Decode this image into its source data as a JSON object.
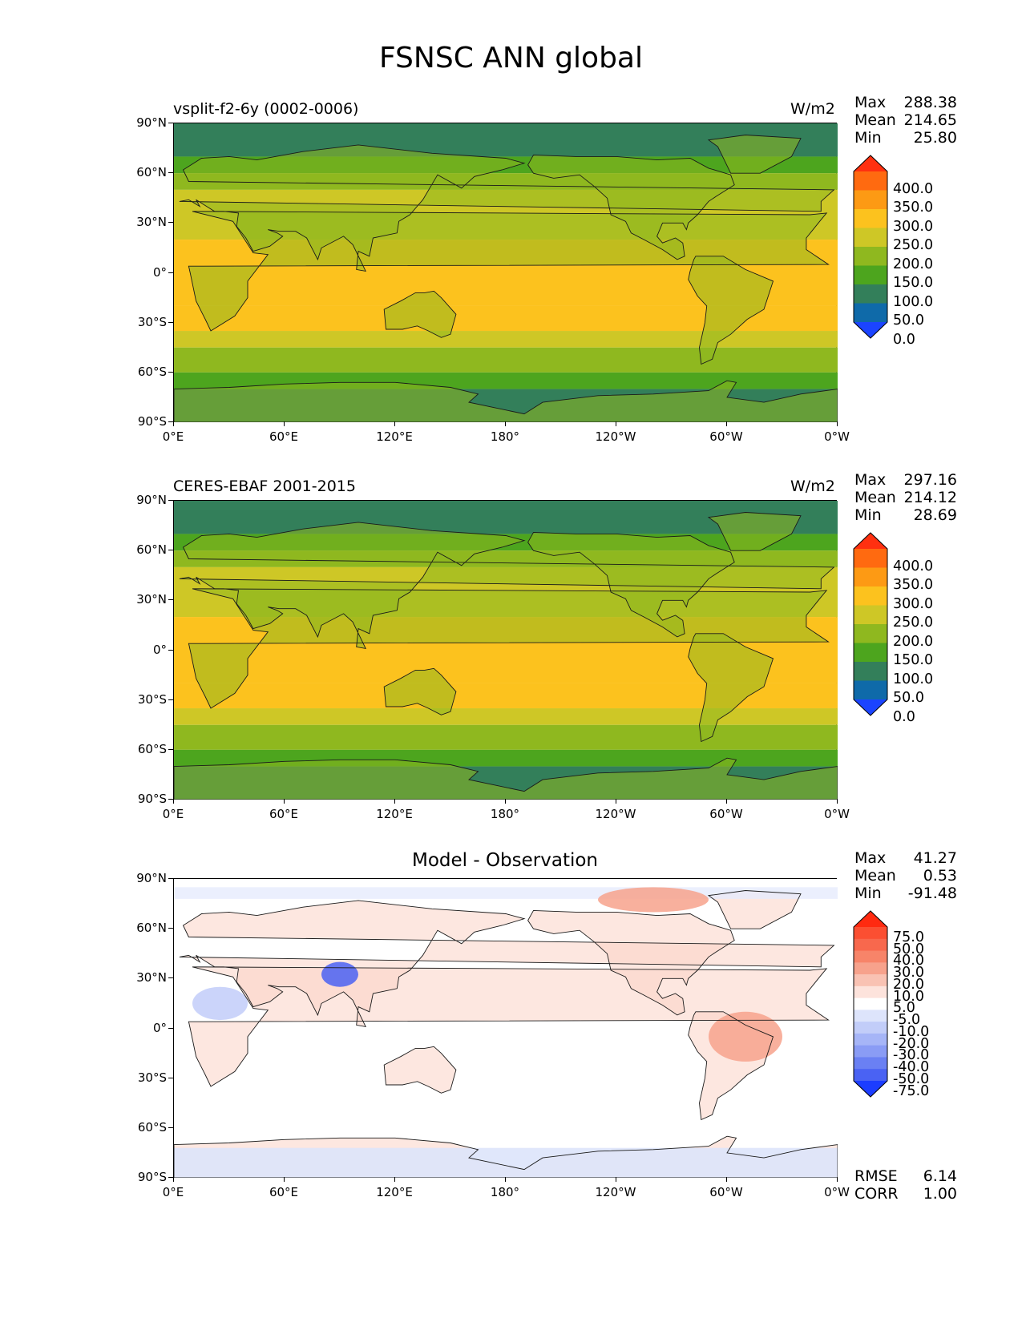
{
  "figure": {
    "title": "FSNSC ANN global"
  },
  "axes": {
    "lat_ticks": [
      "90°N",
      "60°N",
      "30°N",
      "0°",
      "30°S",
      "60°S",
      "90°S"
    ],
    "lon_ticks": [
      "0°E",
      "60°E",
      "120°E",
      "180°",
      "120°W",
      "60°W",
      "0°W"
    ]
  },
  "panels": [
    {
      "title_left": "vsplit-f2-6y (0002-0006)",
      "title_center": "",
      "units": "W/m2",
      "stats": [
        {
          "label": "Max",
          "value": "288.38"
        },
        {
          "label": "Mean",
          "value": "214.65"
        },
        {
          "label": "Min",
          "value": "25.80"
        }
      ],
      "colorbar": {
        "labels": [
          "400.0",
          "350.0",
          "300.0",
          "250.0",
          "200.0",
          "150.0",
          "100.0",
          "50.0",
          "0.0"
        ],
        "colors": [
          "#ff3010",
          "#ff6a10",
          "#fd9a14",
          "#fcc21e",
          "#cec726",
          "#8fb81f",
          "#4da51e",
          "#337f5a",
          "#0f6aa9",
          "#1b44ff"
        ]
      }
    },
    {
      "title_left": "CERES-EBAF 2001-2015",
      "title_center": "",
      "units": "W/m2",
      "stats": [
        {
          "label": "Max",
          "value": "297.16"
        },
        {
          "label": "Mean",
          "value": "214.12"
        },
        {
          "label": "Min",
          "value": "28.69"
        }
      ],
      "colorbar": {
        "labels": [
          "400.0",
          "350.0",
          "300.0",
          "250.0",
          "200.0",
          "150.0",
          "100.0",
          "50.0",
          "0.0"
        ],
        "colors": [
          "#ff3010",
          "#ff6a10",
          "#fd9a14",
          "#fcc21e",
          "#cec726",
          "#8fb81f",
          "#4da51e",
          "#337f5a",
          "#0f6aa9",
          "#1b44ff"
        ]
      }
    },
    {
      "title_left": "",
      "title_center": "Model - Observation",
      "units": "",
      "stats": [
        {
          "label": "Max",
          "value": "41.27"
        },
        {
          "label": "Mean",
          "value": "0.53"
        },
        {
          "label": "Min",
          "value": "-91.48"
        }
      ],
      "colorbar": {
        "labels": [
          "75.0",
          "50.0",
          "40.0",
          "30.0",
          "20.0",
          "10.0",
          "5.0",
          "-5.0",
          "-10.0",
          "-20.0",
          "-30.0",
          "-40.0",
          "-50.0",
          "-75.0"
        ],
        "colors": [
          "#ff2a10",
          "#fb4f32",
          "#f8684d",
          "#f78469",
          "#f7a28c",
          "#f9c2b3",
          "#fde3dc",
          "#ffffff",
          "#dde4fb",
          "#c2cdf9",
          "#a6b5f7",
          "#8a9cf5",
          "#6a80f3",
          "#4a62f3",
          "#1c3dff"
        ]
      },
      "extra_stats": [
        {
          "label": "RMSE",
          "value": "6.14"
        },
        {
          "label": "CORR",
          "value": "1.00"
        }
      ]
    }
  ],
  "chart_data": [
    {
      "type": "heatmap",
      "title": "vsplit-f2-6y (0002-0006)",
      "units": "W/m2",
      "xlim": [
        0,
        360
      ],
      "ylim": [
        -90,
        90
      ],
      "stats": {
        "max": 288.38,
        "mean": 214.65,
        "min": 25.8
      },
      "levels": [
        0,
        50,
        100,
        150,
        200,
        250,
        300,
        350,
        400
      ],
      "zonal_bands": [
        {
          "lat": [
            70,
            90
          ],
          "value": 75
        },
        {
          "lat": [
            60,
            70
          ],
          "value": 125
        },
        {
          "lat": [
            50,
            60
          ],
          "value": 175
        },
        {
          "lat": [
            20,
            50
          ],
          "value": 225
        },
        {
          "lat": [
            -20,
            20
          ],
          "value": 275
        },
        {
          "lat": [
            -35,
            -20
          ],
          "value": 275
        },
        {
          "lat": [
            -45,
            -35
          ],
          "value": 225
        },
        {
          "lat": [
            -60,
            -45
          ],
          "value": 175
        },
        {
          "lat": [
            -70,
            -60
          ],
          "value": 125
        },
        {
          "lat": [
            -90,
            -70
          ],
          "value": 75
        }
      ]
    },
    {
      "type": "heatmap",
      "title": "CERES-EBAF 2001-2015",
      "units": "W/m2",
      "xlim": [
        0,
        360
      ],
      "ylim": [
        -90,
        90
      ],
      "stats": {
        "max": 297.16,
        "mean": 214.12,
        "min": 28.69
      },
      "levels": [
        0,
        50,
        100,
        150,
        200,
        250,
        300,
        350,
        400
      ],
      "zonal_bands": [
        {
          "lat": [
            70,
            90
          ],
          "value": 75
        },
        {
          "lat": [
            60,
            70
          ],
          "value": 125
        },
        {
          "lat": [
            50,
            60
          ],
          "value": 175
        },
        {
          "lat": [
            20,
            50
          ],
          "value": 225
        },
        {
          "lat": [
            -20,
            20
          ],
          "value": 275
        },
        {
          "lat": [
            -35,
            -20
          ],
          "value": 275
        },
        {
          "lat": [
            -45,
            -35
          ],
          "value": 225
        },
        {
          "lat": [
            -60,
            -45
          ],
          "value": 175
        },
        {
          "lat": [
            -70,
            -60
          ],
          "value": 125
        },
        {
          "lat": [
            -90,
            -70
          ],
          "value": 75
        }
      ]
    },
    {
      "type": "heatmap",
      "title": "Model - Observation",
      "xlim": [
        0,
        360
      ],
      "ylim": [
        -90,
        90
      ],
      "stats": {
        "max": 41.27,
        "mean": 0.53,
        "min": -91.48,
        "rmse": 6.14,
        "corr": 1.0
      },
      "levels": [
        -75,
        -50,
        -40,
        -30,
        -20,
        -10,
        -5,
        5,
        10,
        20,
        30,
        40,
        50,
        75
      ],
      "notable_regions": [
        {
          "lon": [
            80,
            100
          ],
          "lat": [
            25,
            40
          ],
          "value": -60
        },
        {
          "lon": [
            290,
            330
          ],
          "lat": [
            -20,
            10
          ],
          "value": 20
        },
        {
          "lon": [
            10,
            40
          ],
          "lat": [
            5,
            25
          ],
          "value": -15
        },
        {
          "lon": [
            230,
            290
          ],
          "lat": [
            70,
            85
          ],
          "value": 20
        }
      ]
    }
  ]
}
